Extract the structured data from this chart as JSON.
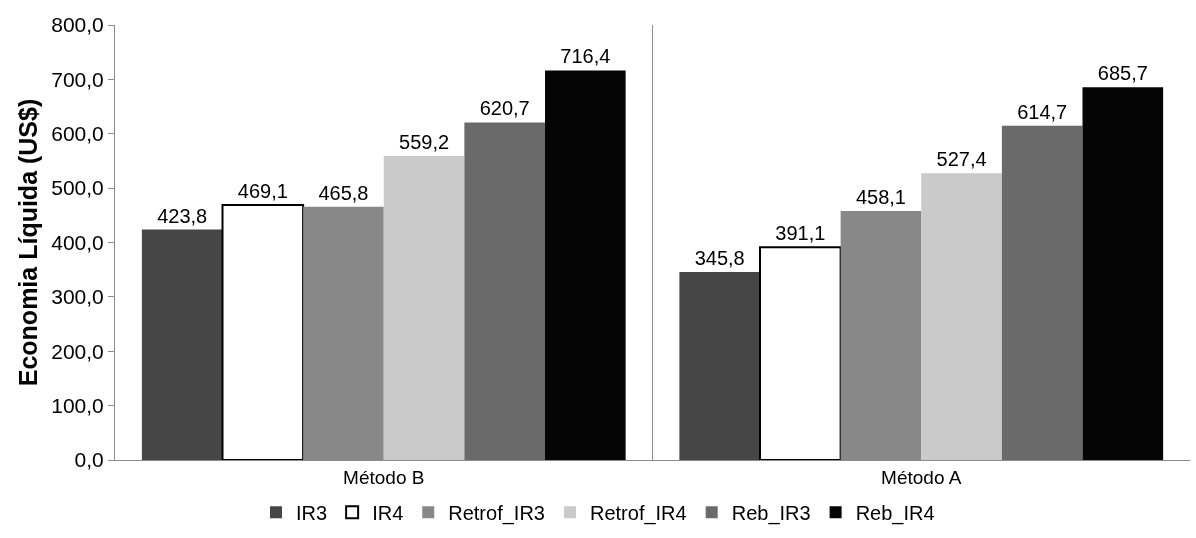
{
  "chart_data": {
    "type": "bar",
    "ylabel": "Economia Líquida (US$)",
    "categories": [
      "Método B",
      "Método A"
    ],
    "series": [
      {
        "name": "IR3",
        "color": "#464646",
        "values": [
          423.8,
          345.8
        ],
        "value_labels": [
          "423,8",
          "345,8"
        ]
      },
      {
        "name": "IR4",
        "color": "#ffffff",
        "values": [
          469.1,
          391.1
        ],
        "value_labels": [
          "469,1",
          "391,1"
        ]
      },
      {
        "name": "Retrof_IR3",
        "color": "#888888",
        "values": [
          465.8,
          458.1
        ],
        "value_labels": [
          "465,8",
          "458,1"
        ]
      },
      {
        "name": "Retrof_IR4",
        "color": "#cacaca",
        "values": [
          559.2,
          527.4
        ],
        "value_labels": [
          "559,2",
          "527,4"
        ]
      },
      {
        "name": "Reb_IR3",
        "color": "#6a6a6a",
        "values": [
          620.7,
          614.7
        ],
        "value_labels": [
          "620,7",
          "614,7"
        ]
      },
      {
        "name": "Reb_IR4",
        "color": "#050505",
        "values": [
          716.4,
          685.7
        ],
        "value_labels": [
          "716,4",
          "685,7"
        ]
      }
    ],
    "ylim": [
      0,
      800
    ],
    "yticks": [
      {
        "value": 0,
        "label": "0,0"
      },
      {
        "value": 100,
        "label": "100,0"
      },
      {
        "value": 200,
        "label": "200,0"
      },
      {
        "value": 300,
        "label": "300,0"
      },
      {
        "value": 400,
        "label": "400,0"
      },
      {
        "value": 500,
        "label": "500,0"
      },
      {
        "value": 600,
        "label": "600,0"
      },
      {
        "value": 700,
        "label": "700,0"
      },
      {
        "value": 800,
        "label": "800,0"
      }
    ],
    "grid": "x",
    "legend": "bottom"
  }
}
